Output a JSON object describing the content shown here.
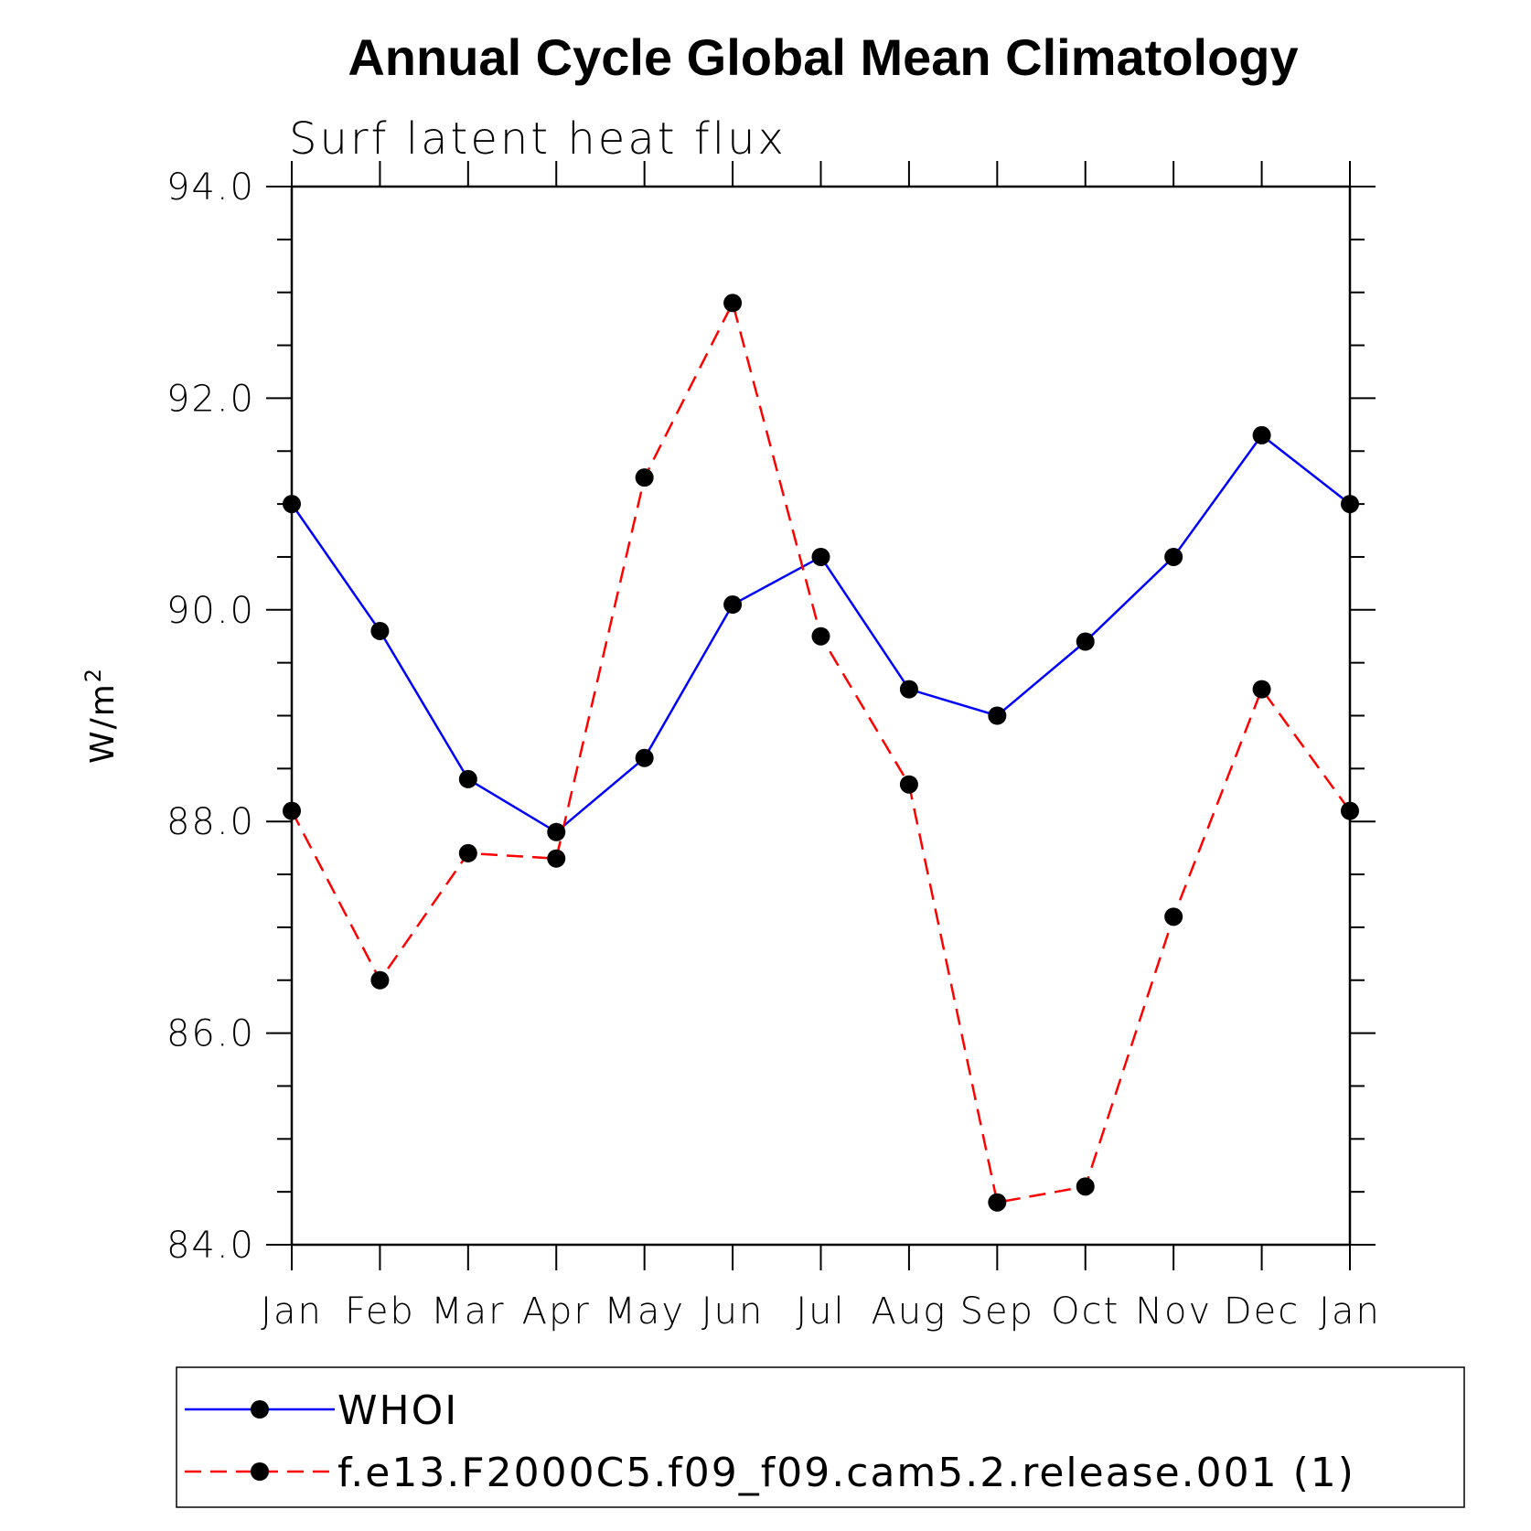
{
  "chart_data": {
    "type": "line",
    "title": "Annual Cycle Global Mean Climatology",
    "subtitle": "Surf latent heat flux",
    "ylabel_base": "W/m",
    "ylabel_sup": "2",
    "xlabel": "",
    "categories": [
      "Jan",
      "Feb",
      "Mar",
      "Apr",
      "May",
      "Jun",
      "Jul",
      "Aug",
      "Sep",
      "Oct",
      "Nov",
      "Dec",
      "Jan"
    ],
    "ylim": [
      84.0,
      94.0
    ],
    "yticks": [
      "84.0",
      "86.0",
      "88.0",
      "90.0",
      "92.0",
      "94.0"
    ],
    "series": [
      {
        "name": "WHOI",
        "color": "#0000ff",
        "dashed": false,
        "values": [
          91.0,
          89.8,
          88.4,
          87.9,
          88.6,
          90.05,
          90.5,
          89.25,
          89.0,
          89.7,
          90.5,
          91.65,
          91.0
        ]
      },
      {
        "name": "f.e13.F2000C5.f09_f09.cam5.2.release.001 (1)",
        "color": "#ff0000",
        "dashed": true,
        "values": [
          88.1,
          86.5,
          87.7,
          87.65,
          91.25,
          92.9,
          89.75,
          88.35,
          84.4,
          84.55,
          87.1,
          89.25,
          88.1
        ]
      }
    ],
    "legend_position": "bottom",
    "grid": false
  }
}
